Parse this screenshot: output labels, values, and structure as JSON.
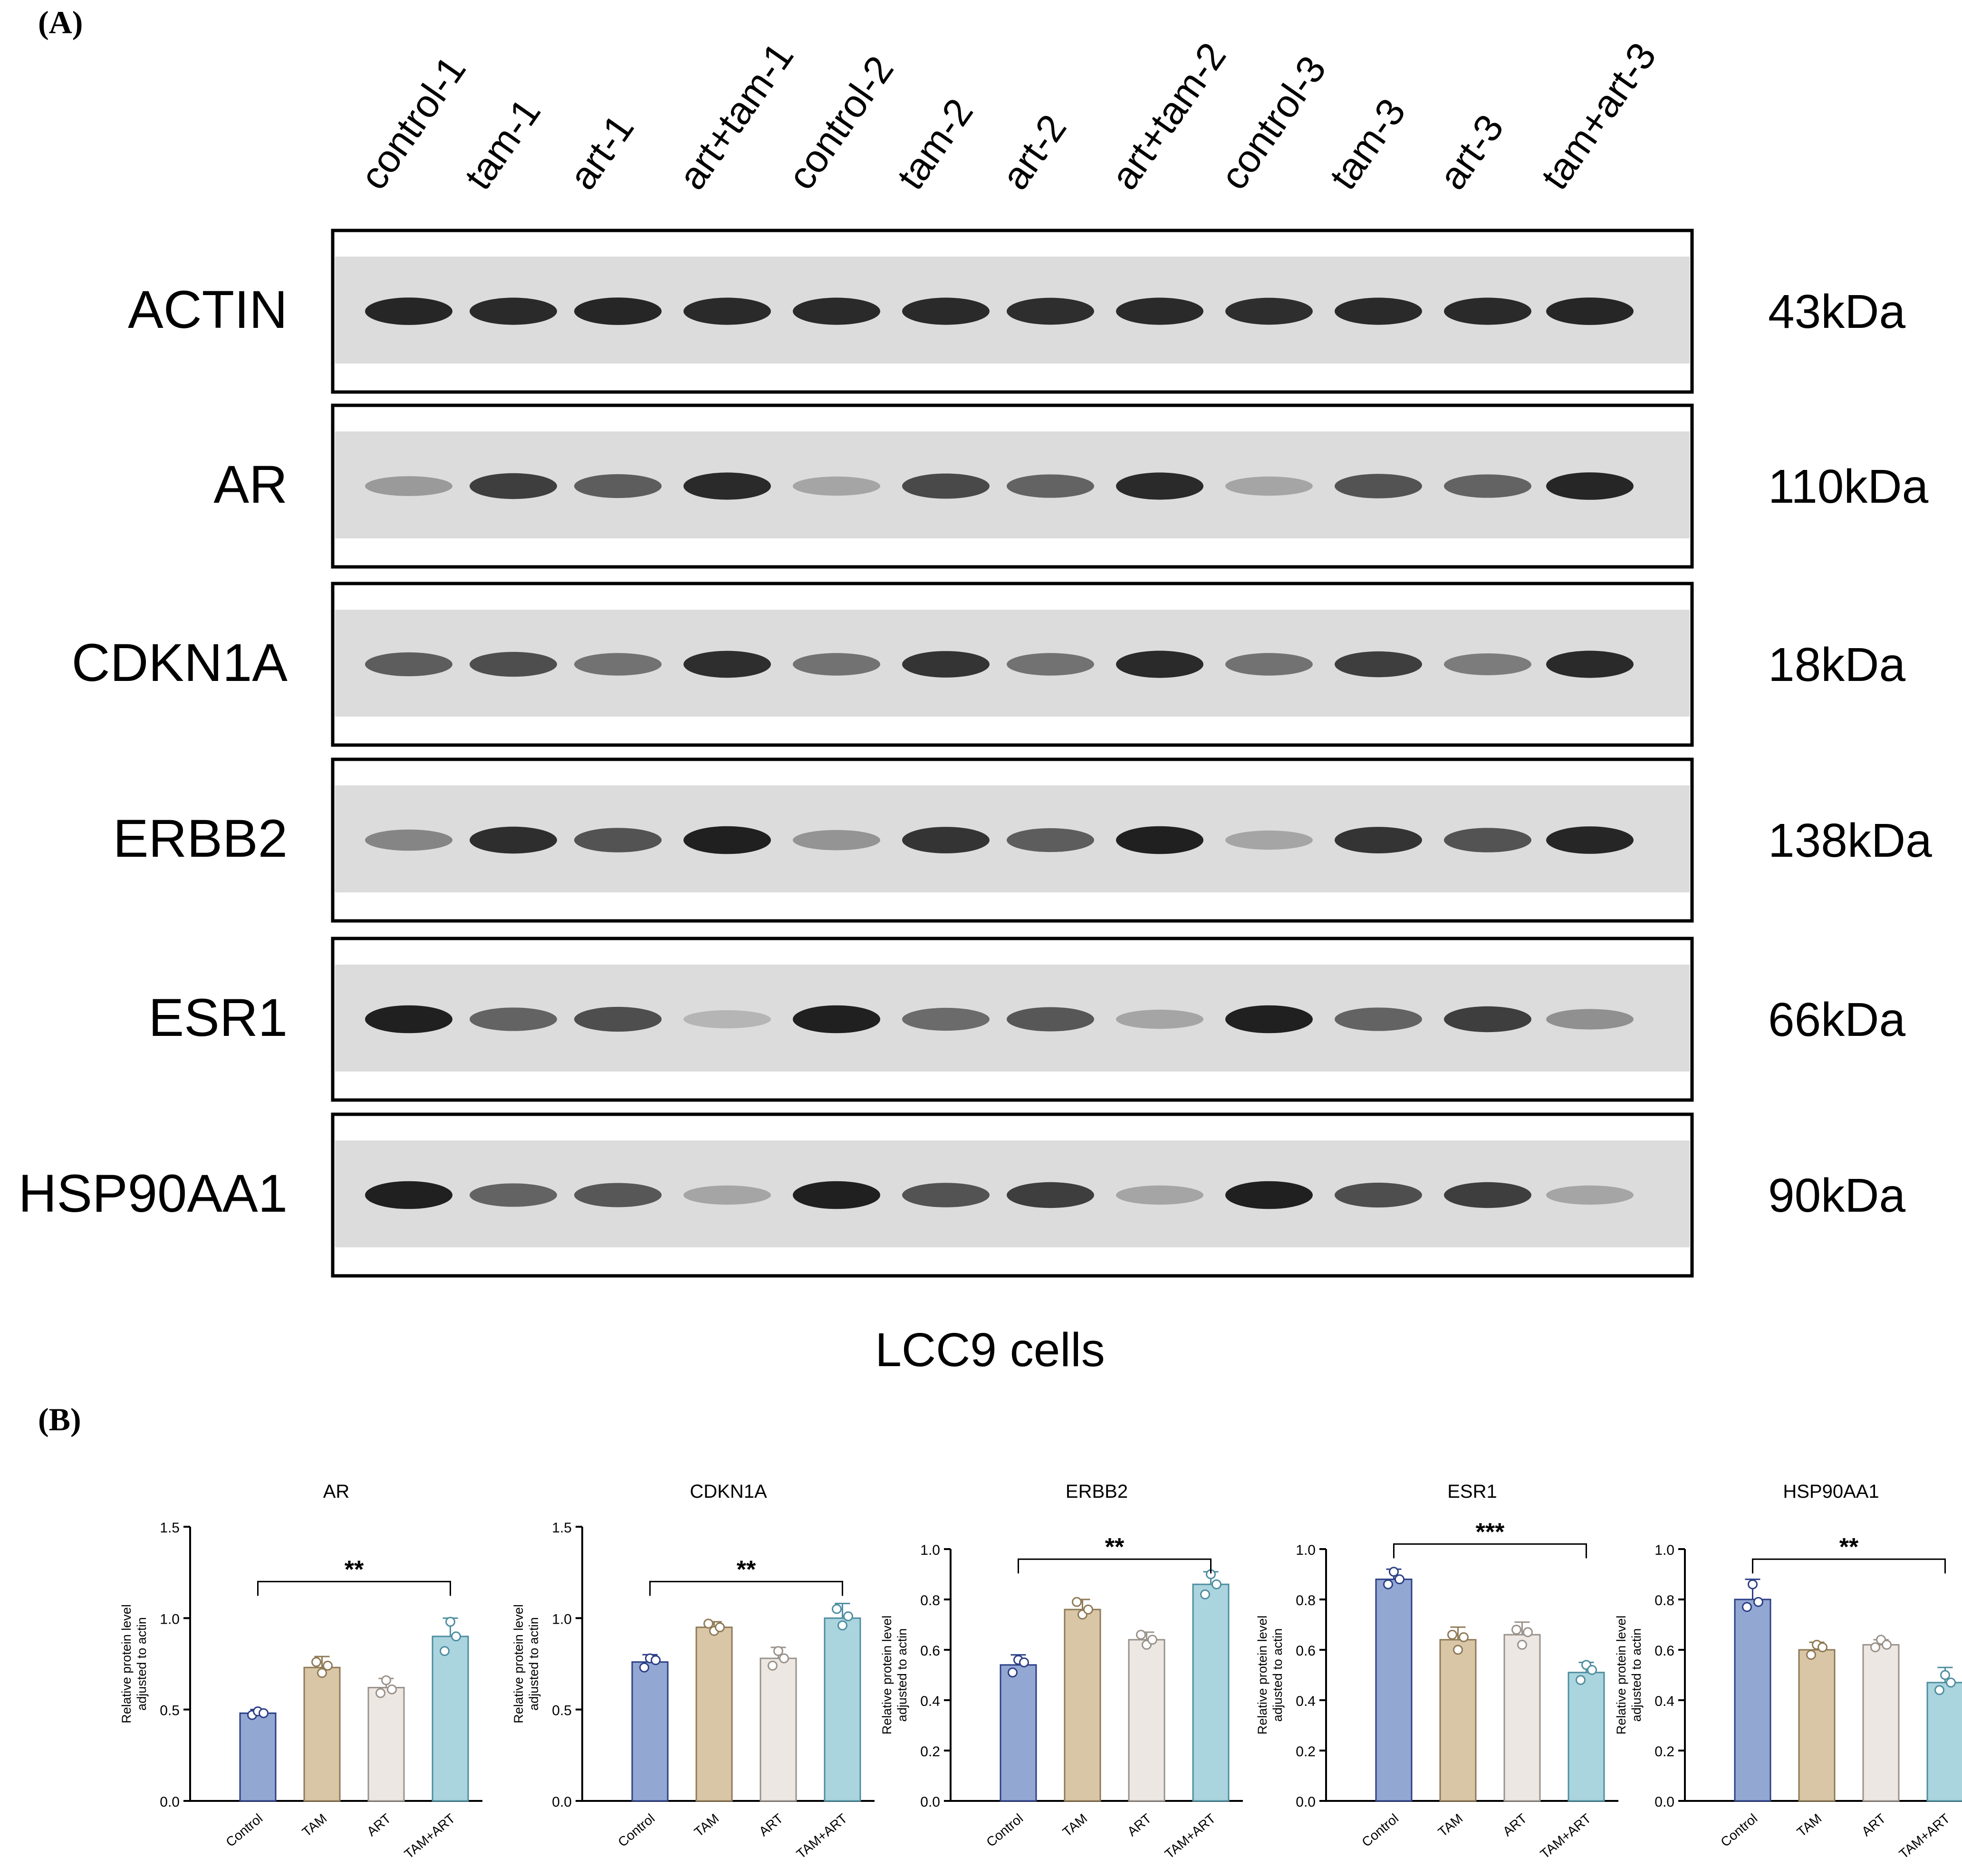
{
  "panel_a": {
    "label": "(A)",
    "lanes": [
      "control-1",
      "tam-1",
      "art-1",
      "art+tam-1",
      "control-2",
      "tam-2",
      "art-2",
      "art+tam-2",
      "control-3",
      "tam-3",
      "art-3",
      "tam+art-3"
    ],
    "blots": [
      {
        "protein": "ACTIN",
        "weight": "43kDa",
        "intensity": [
          0.92,
          0.9,
          0.92,
          0.9,
          0.9,
          0.9,
          0.88,
          0.9,
          0.88,
          0.9,
          0.9,
          0.92
        ]
      },
      {
        "protein": "AR",
        "weight": "110kDa",
        "intensity": [
          0.35,
          0.8,
          0.65,
          0.9,
          0.3,
          0.75,
          0.62,
          0.9,
          0.3,
          0.7,
          0.62,
          0.92
        ]
      },
      {
        "protein": "CDKN1A",
        "weight": "18kDa",
        "intensity": [
          0.65,
          0.72,
          0.55,
          0.88,
          0.55,
          0.85,
          0.55,
          0.9,
          0.55,
          0.8,
          0.5,
          0.9
        ]
      },
      {
        "protein": "ERBB2",
        "weight": "138kDa",
        "intensity": [
          0.45,
          0.88,
          0.7,
          0.95,
          0.38,
          0.85,
          0.65,
          0.95,
          0.3,
          0.85,
          0.7,
          0.92
        ]
      },
      {
        "protein": "ESR1",
        "weight": "66kDa",
        "intensity": [
          0.95,
          0.62,
          0.72,
          0.22,
          0.95,
          0.58,
          0.68,
          0.3,
          0.95,
          0.62,
          0.8,
          0.4
        ]
      },
      {
        "protein": "HSP90AA1",
        "weight": "90kDa",
        "intensity": [
          0.95,
          0.62,
          0.68,
          0.3,
          0.95,
          0.7,
          0.8,
          0.3,
          0.95,
          0.72,
          0.8,
          0.3
        ]
      }
    ],
    "caption": "LCC9 cells"
  },
  "panel_b": {
    "label": "(B)",
    "colors": [
      "#93a7d3",
      "#d9c6a7",
      "#ece7e2",
      "#aad4de"
    ],
    "edge_colors": [
      "#2c3f86",
      "#8e7a55",
      "#9a928a",
      "#4e8ea0"
    ]
  },
  "chart_data": [
    {
      "type": "bar",
      "title": "AR",
      "ylabel": "Relative protein level adjusted to actin",
      "categories": [
        "Control",
        "TAM",
        "ART",
        "TAM+ART"
      ],
      "values": [
        0.48,
        0.73,
        0.62,
        0.9
      ],
      "errors": [
        0.02,
        0.06,
        0.05,
        0.1
      ],
      "points": [
        [
          0.47,
          0.49,
          0.48
        ],
        [
          0.76,
          0.7,
          0.74
        ],
        [
          0.59,
          0.66,
          0.61
        ],
        [
          0.82,
          0.98,
          0.9
        ]
      ],
      "ylim": [
        0,
        1.5
      ],
      "yticks": [
        "0.0",
        "0.5",
        "1.0",
        "1.5"
      ],
      "significance": {
        "from": 0,
        "to": 3,
        "label": "**",
        "y": 1.2
      }
    },
    {
      "type": "bar",
      "title": "CDKN1A",
      "ylabel": "Relative protein level adjusted to actin",
      "categories": [
        "Control",
        "TAM",
        "ART",
        "TAM+ART"
      ],
      "values": [
        0.76,
        0.95,
        0.78,
        1.0
      ],
      "errors": [
        0.04,
        0.03,
        0.06,
        0.08
      ],
      "points": [
        [
          0.73,
          0.78,
          0.77
        ],
        [
          0.97,
          0.93,
          0.95
        ],
        [
          0.74,
          0.82,
          0.78
        ],
        [
          1.05,
          0.96,
          1.01
        ]
      ],
      "ylim": [
        0,
        1.5
      ],
      "yticks": [
        "0.0",
        "0.5",
        "1.0",
        "1.5"
      ],
      "significance": {
        "from": 0,
        "to": 3,
        "label": "**",
        "y": 1.2
      }
    },
    {
      "type": "bar",
      "title": "ERBB2",
      "ylabel": "Relative protein level adjusted to actin",
      "categories": [
        "Control",
        "TAM",
        "ART",
        "TAM+ART"
      ],
      "values": [
        0.54,
        0.76,
        0.64,
        0.86
      ],
      "errors": [
        0.04,
        0.04,
        0.03,
        0.05
      ],
      "points": [
        [
          0.51,
          0.56,
          0.55
        ],
        [
          0.79,
          0.74,
          0.76
        ],
        [
          0.66,
          0.62,
          0.64
        ],
        [
          0.82,
          0.9,
          0.86
        ]
      ],
      "ylim": [
        0,
        1.0
      ],
      "yticks": [
        "0.0",
        "0.2",
        "0.4",
        "0.6",
        "0.8",
        "1.0"
      ],
      "significance": {
        "from": 0,
        "to": 3,
        "label": "**",
        "y": 0.96
      }
    },
    {
      "type": "bar",
      "title": "ESR1",
      "ylabel": "Relative protein level adjusted to actin",
      "categories": [
        "Control",
        "TAM",
        "ART",
        "TAM+ART"
      ],
      "values": [
        0.88,
        0.64,
        0.66,
        0.51
      ],
      "errors": [
        0.04,
        0.05,
        0.05,
        0.04
      ],
      "points": [
        [
          0.86,
          0.91,
          0.88
        ],
        [
          0.66,
          0.6,
          0.65
        ],
        [
          0.68,
          0.62,
          0.67
        ],
        [
          0.48,
          0.54,
          0.52
        ]
      ],
      "ylim": [
        0,
        1.0
      ],
      "yticks": [
        "0.0",
        "0.2",
        "0.4",
        "0.6",
        "0.8",
        "1.0"
      ],
      "significance": {
        "from": 0,
        "to": 3,
        "label": "***",
        "y": 1.02
      }
    },
    {
      "type": "bar",
      "title": "HSP90AA1",
      "ylabel": "Relative protein level adjusted to actin",
      "categories": [
        "Control",
        "TAM",
        "ART",
        "TAM+ART"
      ],
      "values": [
        0.8,
        0.6,
        0.62,
        0.47
      ],
      "errors": [
        0.08,
        0.03,
        0.02,
        0.06
      ],
      "points": [
        [
          0.77,
          0.86,
          0.79
        ],
        [
          0.58,
          0.62,
          0.61
        ],
        [
          0.61,
          0.64,
          0.62
        ],
        [
          0.44,
          0.5,
          0.47
        ]
      ],
      "ylim": [
        0,
        1.0
      ],
      "yticks": [
        "0.0",
        "0.2",
        "0.4",
        "0.6",
        "0.8",
        "1.0"
      ],
      "significance": {
        "from": 0,
        "to": 3,
        "label": "**",
        "y": 0.96
      }
    }
  ]
}
